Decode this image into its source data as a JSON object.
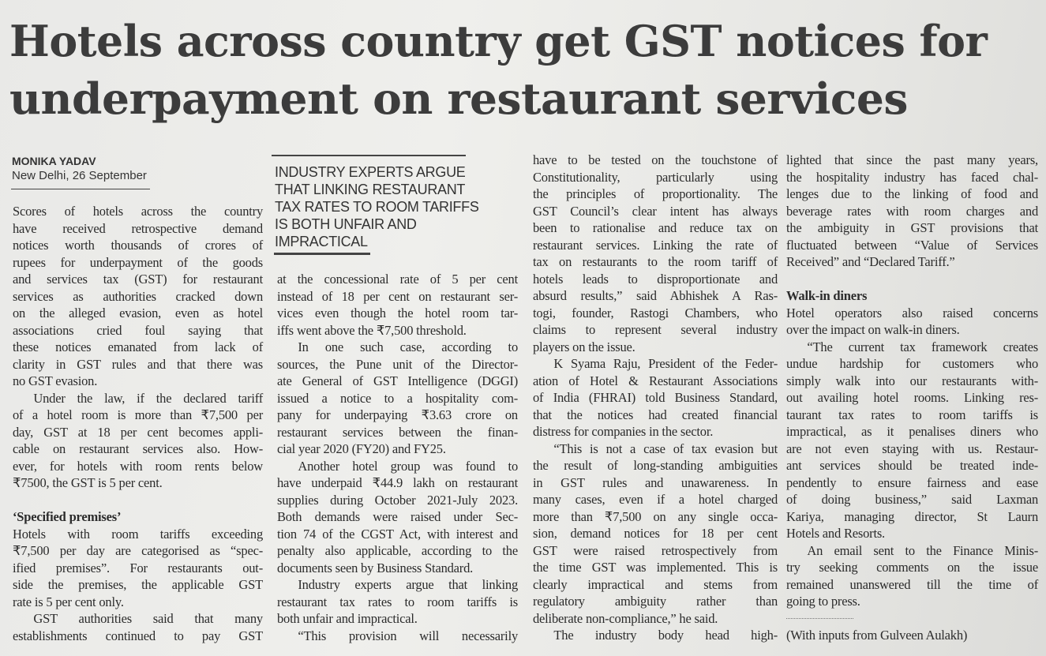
{
  "headline": [
    "Hotels across country get GST notices for",
    "underpayment on restaurant services"
  ],
  "byline": "MONIKA YADAV",
  "dateline": "New Delhi, 26 September",
  "pull_quote": [
    "INDUSTRY EXPERTS ARGUE",
    "THAT LINKING RESTAURANT",
    "TAX RATES TO ROOM TARIFFS",
    "IS BOTH UNFAIR AND",
    "IMPRACTICAL"
  ],
  "columns": [
    {
      "items": [
        {
          "type": "para",
          "indent": false,
          "lines": [
            "Scores of hotels across the country",
            "have received retrospective demand",
            "notices worth thousands of crores of",
            "rupees for underpayment of the goods",
            "and services tax (GST) for restaurant",
            "services as authorities cracked down",
            "on the alleged evasion, even as hotel",
            "associations cried foul saying that",
            "these notices emanated from lack of",
            "clarity in GST rules and that there was",
            "no GST evasion."
          ]
        },
        {
          "type": "para",
          "indent": true,
          "lines": [
            "Under the law, if the declared tariff",
            "of a hotel room is more than ₹7,500 per",
            "day, GST at 18 per cent becomes appli-",
            "cable on restaurant services also. How-",
            "ever, for hotels with room rents below",
            "₹7500, the GST is 5 per cent."
          ]
        },
        {
          "type": "blank"
        },
        {
          "type": "heading",
          "text": "‘Specified premises’"
        },
        {
          "type": "para",
          "indent": false,
          "lines": [
            "Hotels with room tariffs exceeding",
            "₹7,500 per day are categorised as “spec-",
            "ified premises”.  For restaurants out-",
            "side the premises, the applicable GST",
            "rate is 5 per cent only."
          ]
        },
        {
          "type": "para",
          "indent": true,
          "cont": true,
          "lines": [
            "GST authorities said that many",
            "establishments continued to pay GST"
          ]
        }
      ]
    },
    {
      "items": [
        {
          "type": "para",
          "indent": false,
          "lines": [
            "at the concessional rate of 5 per cent",
            "instead of 18 per cent on restaurant ser-",
            "vices even though the hotel room tar-",
            "iffs went above the ₹7,500 threshold."
          ]
        },
        {
          "type": "para",
          "indent": true,
          "lines": [
            "In one such case, according to",
            "sources, the Pune unit of the Director-",
            "ate General of GST Intelligence (DGGI)",
            "issued a notice to a hospitality com-",
            "pany for underpaying ₹3.63 crore on",
            "restaurant services between the finan-",
            "cial year 2020 (FY20) and FY25."
          ]
        },
        {
          "type": "para",
          "indent": true,
          "lines": [
            "Another hotel group was found to",
            "have underpaid ₹44.9 lakh on restaurant",
            "supplies during October 2021-July 2023.",
            "Both demands were raised under Sec-",
            "tion 74 of the CGST Act, with interest and",
            "penalty also applicable, according to the",
            "documents seen by Business Standard."
          ]
        },
        {
          "type": "para",
          "indent": true,
          "lines": [
            "Industry experts argue that linking",
            "restaurant tax rates to room tariffs is",
            "both unfair and impractical."
          ]
        },
        {
          "type": "para",
          "indent": true,
          "cont": true,
          "lines": [
            "“This provision will necessarily"
          ]
        }
      ]
    },
    {
      "items": [
        {
          "type": "para",
          "indent": false,
          "lines": [
            "have to be tested on the touchstone of",
            "Constitutionality, particularly using",
            "the principles of proportionality. The",
            "GST Council’s clear intent has always",
            "been to rationalise and reduce tax on",
            "restaurant services. Linking the rate of",
            "tax on restaurants to the room tariff of",
            "hotels leads to disproportionate and",
            "absurd results,” said Abhishek A Ras-",
            "togi, founder, Rastogi Chambers, who",
            "claims to represent several industry",
            "players on the issue."
          ]
        },
        {
          "type": "para",
          "indent": true,
          "lines": [
            "K Syama Raju, President of the Feder-",
            "ation of Hotel & Restaurant Associations",
            "of India (FHRAI) told Business Standard,",
            "that the notices had created financial",
            "distress for companies in the sector."
          ]
        },
        {
          "type": "para",
          "indent": true,
          "lines": [
            "“This is not a case of tax evasion but",
            "the result of long-standing ambiguities",
            "in GST rules and unawareness. In",
            "many cases, even if a hotel charged",
            "more than ₹7,500 on any single occa-",
            "sion, demand notices for 18 per cent",
            "GST were raised retrospectively from",
            "the time GST was implemented. This is",
            "clearly impractical and stems from",
            "regulatory ambiguity rather than",
            "deliberate non-compliance,” he said."
          ]
        },
        {
          "type": "para",
          "indent": true,
          "cont": true,
          "lines": [
            "The industry body head high-"
          ]
        }
      ]
    },
    {
      "items": [
        {
          "type": "para",
          "indent": false,
          "lines": [
            "lighted that since the past many years,",
            "the hospitality industry has faced chal-",
            "lenges due to the linking of food and",
            "beverage rates with room charges and",
            "the ambiguity in GST provisions that",
            "fluctuated between “Value of Services",
            "Received” and “Declared Tariff.”"
          ]
        },
        {
          "type": "blank"
        },
        {
          "type": "heading",
          "text": "Walk-in diners"
        },
        {
          "type": "para",
          "indent": false,
          "lines": [
            "Hotel operators also raised concerns",
            "over the impact on walk-in diners."
          ]
        },
        {
          "type": "para",
          "indent": true,
          "lines": [
            "“The current tax framework creates",
            "undue hardship for customers who",
            "simply walk into our restaurants with-",
            "out availing hotel rooms. Linking res-",
            "taurant tax rates to room tariffs is",
            "impractical, as it penalises diners who",
            "are not even staying with us. Restaur-",
            "ant services should be treated inde-",
            "pendently to ensure fairness and ease",
            "of doing business,”  said  Laxman",
            "Kariya, managing director, St Laurn",
            "Hotels and Resorts."
          ]
        },
        {
          "type": "para",
          "indent": true,
          "lines": [
            "An email sent to the Finance Minis-",
            "try seeking comments on the issue",
            "remained unanswered till the time of",
            "going to press."
          ]
        },
        {
          "type": "rule"
        },
        {
          "type": "heading-plain",
          "text": "(With inputs from Gulveen Aulakh)"
        }
      ]
    }
  ]
}
